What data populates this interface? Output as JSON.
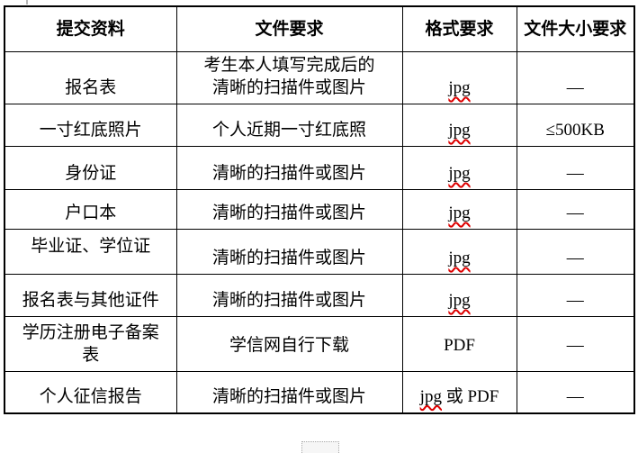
{
  "document": {
    "language": "zh-CN",
    "table": {
      "headers": [
        "提交资料",
        "文件要求",
        "格式要求",
        "文件大小要求"
      ],
      "rows": [
        {
          "material_lines": [
            "报名表"
          ],
          "requirement_lines": [
            "考生本人填写完成后的",
            "清晰的扫描件或图片"
          ],
          "format_segments": [
            {
              "text": "jpg",
              "spellcheck": true
            }
          ],
          "size": "—"
        },
        {
          "material_lines": [
            "一寸红底照片"
          ],
          "requirement_lines": [
            "个人近期一寸红底照"
          ],
          "format_segments": [
            {
              "text": "jpg",
              "spellcheck": true
            }
          ],
          "size": "≤500KB"
        },
        {
          "material_lines": [
            "身份证"
          ],
          "requirement_lines": [
            "清晰的扫描件或图片"
          ],
          "format_segments": [
            {
              "text": "jpg",
              "spellcheck": true
            }
          ],
          "size": "—"
        },
        {
          "material_lines": [
            "户口本"
          ],
          "requirement_lines": [
            "清晰的扫描件或图片"
          ],
          "format_segments": [
            {
              "text": "jpg",
              "spellcheck": true
            }
          ],
          "size": "—"
        },
        {
          "material_lines": [
            "毕业证、学位证"
          ],
          "requirement_lines": [
            "清晰的扫描件或图片"
          ],
          "format_segments": [
            {
              "text": "jpg",
              "spellcheck": true
            }
          ],
          "size": "—"
        },
        {
          "material_lines": [
            "报名表与其他证件"
          ],
          "requirement_lines": [
            "清晰的扫描件或图片"
          ],
          "format_segments": [
            {
              "text": "jpg",
              "spellcheck": true
            }
          ],
          "size": "—"
        },
        {
          "material_lines": [
            "学历注册电子备案",
            "表"
          ],
          "requirement_lines": [
            "学信网自行下载"
          ],
          "format_segments": [
            {
              "text": "PDF",
              "spellcheck": false
            }
          ],
          "size": "—"
        },
        {
          "material_lines": [
            "个人征信报告"
          ],
          "requirement_lines": [
            "清晰的扫描件或图片"
          ],
          "format_segments": [
            {
              "text": "jpg",
              "spellcheck": true
            },
            {
              "text": " 或 PDF",
              "spellcheck": false
            }
          ],
          "size": "—"
        }
      ]
    },
    "colors": {
      "background": "#ffffff",
      "border": "#000000",
      "text": "#000000",
      "spellcheck_underline": "#dd0000"
    }
  }
}
